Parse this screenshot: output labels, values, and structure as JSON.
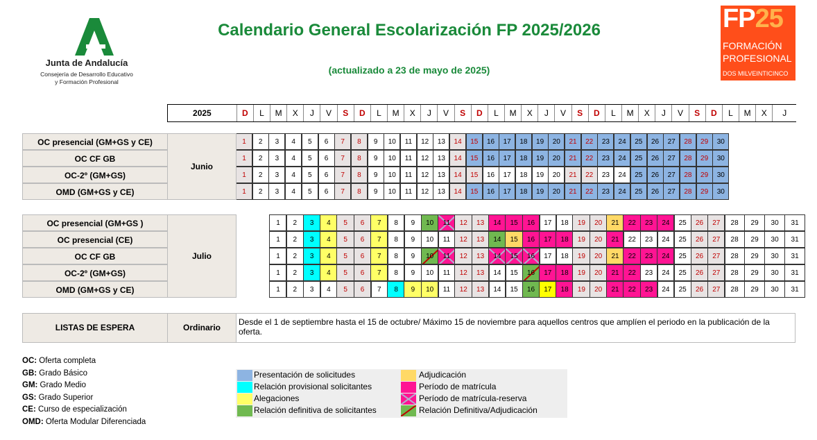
{
  "header": {
    "title": "Calendario General Escolarización FP 2025/2026",
    "subtitle": "(actualizado a 23 de mayo de 2025)",
    "logo_left": {
      "name": "Junta de Andalucía",
      "line1": "Consejería de Desarrollo Educativo",
      "line2": "y Formación Profesional"
    },
    "logo_right": {
      "fp": "FP",
      "num": "25",
      "line1": "FORMACIÓN",
      "line2": "PROFESIONAL",
      "line3": "DOS MILVEINTICINCO"
    }
  },
  "weekday_row": {
    "year": "2025",
    "days": [
      "D",
      "L",
      "M",
      "X",
      "J",
      "V",
      "S",
      "D",
      "L",
      "M",
      "X",
      "J",
      "V",
      "S",
      "D",
      "L",
      "M",
      "X",
      "J",
      "V",
      "S",
      "D",
      "L",
      "M",
      "X",
      "J",
      "V",
      "S",
      "D",
      "L",
      "M",
      "X",
      "J"
    ]
  },
  "colors": {
    "presentacion": "#8db4e2",
    "rel_provisional": "#00ffff",
    "alegaciones": "#ffff66",
    "rel_definitiva": "#70b950",
    "adjudicacion": "#ffd966",
    "matricula": "#ff1493",
    "weekend_text": "#c00000"
  },
  "june": {
    "month": "Junio",
    "rows": [
      {
        "label": "OC presencial  (GM+GS y CE)",
        "cells": [
          [
            "1",
            "w"
          ],
          [
            "2",
            ""
          ],
          [
            "3",
            ""
          ],
          [
            "4",
            ""
          ],
          [
            "5",
            ""
          ],
          [
            "6",
            ""
          ],
          [
            "7",
            "w"
          ],
          [
            "8",
            "w"
          ],
          [
            "9",
            ""
          ],
          [
            "10",
            ""
          ],
          [
            "11",
            ""
          ],
          [
            "12",
            ""
          ],
          [
            "13",
            ""
          ],
          [
            "14",
            "w"
          ],
          [
            "15",
            "wb"
          ],
          [
            "16",
            "b"
          ],
          [
            "17",
            "b"
          ],
          [
            "18",
            "b"
          ],
          [
            "19",
            "b"
          ],
          [
            "20",
            "b"
          ],
          [
            "21",
            "wb"
          ],
          [
            "22",
            "wb"
          ],
          [
            "23",
            "b"
          ],
          [
            "24",
            "b"
          ],
          [
            "25",
            "b"
          ],
          [
            "26",
            "b"
          ],
          [
            "27",
            "b"
          ],
          [
            "28",
            "wb"
          ],
          [
            "29",
            "wb"
          ],
          [
            "30",
            "b"
          ]
        ]
      },
      {
        "label": "OC CF GB",
        "cells": [
          [
            "1",
            "w"
          ],
          [
            "2",
            ""
          ],
          [
            "3",
            ""
          ],
          [
            "4",
            ""
          ],
          [
            "5",
            ""
          ],
          [
            "6",
            ""
          ],
          [
            "7",
            "w"
          ],
          [
            "8",
            "w"
          ],
          [
            "9",
            ""
          ],
          [
            "10",
            ""
          ],
          [
            "11",
            ""
          ],
          [
            "12",
            ""
          ],
          [
            "13",
            ""
          ],
          [
            "14",
            "w"
          ],
          [
            "15",
            "wb"
          ],
          [
            "16",
            "b"
          ],
          [
            "17",
            "b"
          ],
          [
            "18",
            "b"
          ],
          [
            "19",
            "b"
          ],
          [
            "20",
            "b"
          ],
          [
            "21",
            "wb"
          ],
          [
            "22",
            "wb"
          ],
          [
            "23",
            "b"
          ],
          [
            "24",
            "b"
          ],
          [
            "25",
            "b"
          ],
          [
            "26",
            "b"
          ],
          [
            "27",
            "b"
          ],
          [
            "28",
            "wb"
          ],
          [
            "29",
            "wb"
          ],
          [
            "30",
            "b"
          ]
        ]
      },
      {
        "label": "OC-2º (GM+GS)",
        "cells": [
          [
            "1",
            "w"
          ],
          [
            "2",
            ""
          ],
          [
            "3",
            ""
          ],
          [
            "4",
            ""
          ],
          [
            "5",
            ""
          ],
          [
            "6",
            ""
          ],
          [
            "7",
            "w"
          ],
          [
            "8",
            "w"
          ],
          [
            "9",
            ""
          ],
          [
            "10",
            ""
          ],
          [
            "11",
            ""
          ],
          [
            "12",
            ""
          ],
          [
            "13",
            ""
          ],
          [
            "14",
            "w"
          ],
          [
            "15",
            "w"
          ],
          [
            "16",
            ""
          ],
          [
            "17",
            ""
          ],
          [
            "18",
            ""
          ],
          [
            "19",
            ""
          ],
          [
            "20",
            ""
          ],
          [
            "21",
            "w"
          ],
          [
            "22",
            "w"
          ],
          [
            "23",
            ""
          ],
          [
            "24",
            ""
          ],
          [
            "25",
            "b"
          ],
          [
            "26",
            "b"
          ],
          [
            "27",
            "b"
          ],
          [
            "28",
            "wb"
          ],
          [
            "29",
            "wb"
          ],
          [
            "30",
            "b"
          ]
        ]
      },
      {
        "label": "OMD (GM+GS y CE)",
        "cells": [
          [
            "1",
            "w"
          ],
          [
            "2",
            ""
          ],
          [
            "3",
            ""
          ],
          [
            "4",
            ""
          ],
          [
            "5",
            ""
          ],
          [
            "6",
            ""
          ],
          [
            "7",
            "w"
          ],
          [
            "8",
            "w"
          ],
          [
            "9",
            ""
          ],
          [
            "10",
            ""
          ],
          [
            "11",
            ""
          ],
          [
            "12",
            ""
          ],
          [
            "13",
            ""
          ],
          [
            "14",
            "w"
          ],
          [
            "15",
            "wb"
          ],
          [
            "16",
            "b"
          ],
          [
            "17",
            "b"
          ],
          [
            "18",
            "b"
          ],
          [
            "19",
            "b"
          ],
          [
            "20",
            "b"
          ],
          [
            "21",
            "wb"
          ],
          [
            "22",
            "wb"
          ],
          [
            "23",
            "b"
          ],
          [
            "24",
            "b"
          ],
          [
            "25",
            "b"
          ],
          [
            "26",
            "b"
          ],
          [
            "27",
            "b"
          ],
          [
            "28",
            "wb"
          ],
          [
            "29",
            "wb"
          ],
          [
            "30",
            "b"
          ]
        ]
      }
    ]
  },
  "july": {
    "month": "Julio",
    "rows": [
      {
        "label": "OC presencial  (GM+GS )",
        "cells": [
          [
            "1",
            ""
          ],
          [
            "2",
            ""
          ],
          [
            "3",
            "c"
          ],
          [
            "4",
            "y"
          ],
          [
            "5",
            "w"
          ],
          [
            "6",
            "w"
          ],
          [
            "7",
            "y"
          ],
          [
            "8",
            ""
          ],
          [
            "9",
            ""
          ],
          [
            "10",
            "g"
          ],
          [
            "11",
            "xp"
          ],
          [
            "12",
            "w"
          ],
          [
            "13",
            "w"
          ],
          [
            "14",
            "m"
          ],
          [
            "15",
            "m"
          ],
          [
            "16",
            "m"
          ],
          [
            "17",
            ""
          ],
          [
            "18",
            ""
          ],
          [
            "19",
            "w"
          ],
          [
            "20",
            "w"
          ],
          [
            "21",
            "o"
          ],
          [
            "22",
            "m"
          ],
          [
            "23",
            "m"
          ],
          [
            "24",
            "m"
          ],
          [
            "25",
            ""
          ],
          [
            "26",
            "w"
          ],
          [
            "27",
            "w"
          ],
          [
            "28",
            ""
          ],
          [
            "29",
            ""
          ],
          [
            "30",
            ""
          ],
          [
            "31",
            ""
          ]
        ]
      },
      {
        "label": "OC presencial (CE)",
        "cells": [
          [
            "1",
            ""
          ],
          [
            "2",
            ""
          ],
          [
            "3",
            "c"
          ],
          [
            "4",
            "y"
          ],
          [
            "5",
            "w"
          ],
          [
            "6",
            "w"
          ],
          [
            "7",
            "y"
          ],
          [
            "8",
            ""
          ],
          [
            "9",
            ""
          ],
          [
            "10",
            ""
          ],
          [
            "11",
            ""
          ],
          [
            "12",
            "w"
          ],
          [
            "13",
            "w"
          ],
          [
            "14",
            "g"
          ],
          [
            "15",
            "o"
          ],
          [
            "16",
            "m"
          ],
          [
            "17",
            "m"
          ],
          [
            "18",
            "m"
          ],
          [
            "19",
            "w"
          ],
          [
            "20",
            "w"
          ],
          [
            "21",
            "m"
          ],
          [
            "22",
            ""
          ],
          [
            "23",
            ""
          ],
          [
            "24",
            ""
          ],
          [
            "25",
            ""
          ],
          [
            "26",
            "w"
          ],
          [
            "27",
            "w"
          ],
          [
            "28",
            ""
          ],
          [
            "29",
            ""
          ],
          [
            "30",
            ""
          ],
          [
            "31",
            ""
          ]
        ]
      },
      {
        "label": "OC CF GB",
        "cells": [
          [
            "1",
            ""
          ],
          [
            "2",
            ""
          ],
          [
            "3",
            "c"
          ],
          [
            "4",
            "y"
          ],
          [
            "5",
            "w"
          ],
          [
            "6",
            "w"
          ],
          [
            "7",
            "y"
          ],
          [
            "8",
            ""
          ],
          [
            "9",
            ""
          ],
          [
            "10",
            "gd"
          ],
          [
            "11",
            "xp"
          ],
          [
            "12",
            "w"
          ],
          [
            "13",
            "w"
          ],
          [
            "14",
            "xp"
          ],
          [
            "15",
            "xp"
          ],
          [
            "16",
            "xp"
          ],
          [
            "17",
            ""
          ],
          [
            "18",
            ""
          ],
          [
            "19",
            "w"
          ],
          [
            "20",
            "w"
          ],
          [
            "21",
            "o"
          ],
          [
            "22",
            "m"
          ],
          [
            "23",
            "m"
          ],
          [
            "24",
            "m"
          ],
          [
            "25",
            ""
          ],
          [
            "26",
            "w"
          ],
          [
            "27",
            "w"
          ],
          [
            "28",
            ""
          ],
          [
            "29",
            ""
          ],
          [
            "30",
            ""
          ],
          [
            "31",
            ""
          ]
        ]
      },
      {
        "label": "OC-2º (GM+GS)",
        "cells": [
          [
            "1",
            ""
          ],
          [
            "2",
            ""
          ],
          [
            "3",
            "c"
          ],
          [
            "4",
            "y"
          ],
          [
            "5",
            "w"
          ],
          [
            "6",
            "w"
          ],
          [
            "7",
            "y"
          ],
          [
            "8",
            ""
          ],
          [
            "9",
            ""
          ],
          [
            "10",
            ""
          ],
          [
            "11",
            ""
          ],
          [
            "12",
            "w"
          ],
          [
            "13",
            "w"
          ],
          [
            "14",
            ""
          ],
          [
            "15",
            ""
          ],
          [
            "16",
            "gd"
          ],
          [
            "17",
            "m"
          ],
          [
            "18",
            "m"
          ],
          [
            "19",
            "w"
          ],
          [
            "20",
            "w"
          ],
          [
            "21",
            "m"
          ],
          [
            "22",
            "m"
          ],
          [
            "23",
            ""
          ],
          [
            "24",
            ""
          ],
          [
            "25",
            ""
          ],
          [
            "26",
            "w"
          ],
          [
            "27",
            "w"
          ],
          [
            "28",
            ""
          ],
          [
            "29",
            ""
          ],
          [
            "30",
            ""
          ],
          [
            "31",
            ""
          ]
        ]
      },
      {
        "label": "OMD (GM+GS y CE)",
        "cells": [
          [
            "1",
            ""
          ],
          [
            "2",
            ""
          ],
          [
            "3",
            ""
          ],
          [
            "4",
            ""
          ],
          [
            "5",
            "w"
          ],
          [
            "6",
            "w"
          ],
          [
            "7",
            ""
          ],
          [
            "8",
            "c"
          ],
          [
            "9",
            "y"
          ],
          [
            "10",
            "y"
          ],
          [
            "11",
            ""
          ],
          [
            "12",
            "w"
          ],
          [
            "13",
            "w"
          ],
          [
            "14",
            ""
          ],
          [
            "15",
            ""
          ],
          [
            "16",
            "g"
          ],
          [
            "17",
            "yy"
          ],
          [
            "18",
            "m"
          ],
          [
            "19",
            "w"
          ],
          [
            "20",
            "w"
          ],
          [
            "21",
            "m"
          ],
          [
            "22",
            "m"
          ],
          [
            "23",
            "m"
          ],
          [
            "24",
            ""
          ],
          [
            "25",
            ""
          ],
          [
            "26",
            "w"
          ],
          [
            "27",
            "w"
          ],
          [
            "28",
            ""
          ],
          [
            "29",
            ""
          ],
          [
            "30",
            ""
          ],
          [
            "31",
            ""
          ]
        ]
      }
    ]
  },
  "waiting": {
    "label": "LISTAS DE ESPERA",
    "type": "Ordinario",
    "text": "Desde el 1 de septiembre hasta el 15 de octubre/ Máximo 15 de noviembre para aquellos centros que amplíen el periodo en la publicación de la oferta."
  },
  "abbreviations": [
    {
      "abbr": "OC:",
      "text": " Oferta completa"
    },
    {
      "abbr": "GB:",
      "text": " Grado Básico"
    },
    {
      "abbr": "GM:",
      "text": " Grado Medio"
    },
    {
      "abbr": "GS:",
      "text": " Grado Superior"
    },
    {
      "abbr": "CE:",
      "text": " Curso de especialización"
    },
    {
      "abbr": "OMD:",
      "text": " Oferta Modular Diferenciada"
    }
  ],
  "legend": {
    "presentacion": "Presentación de solicitudes",
    "rel_provisional": "Relación provisional solicitantes",
    "alegaciones": "Alegaciones",
    "rel_definitiva": "Relación definitiva de solicitantes",
    "adjudicacion": "Adjudicación",
    "matricula": "Período de matrícula",
    "matricula_reserva": "Período de matrícula-reserva",
    "definitiva_adjudicacion": "Relación Definitiva/Adjudicación"
  }
}
